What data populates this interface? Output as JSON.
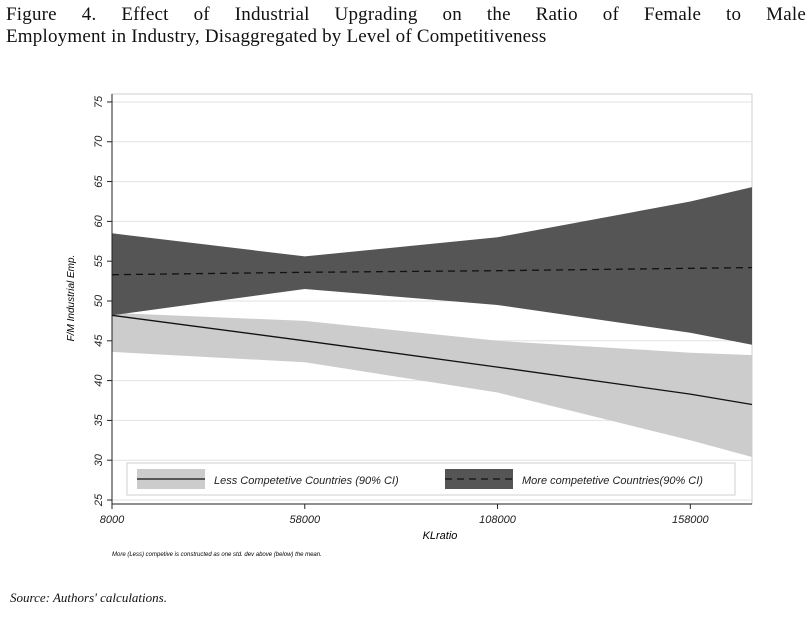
{
  "figure": {
    "title_line1": "Figure 4. Effect of Industrial Upgrading on the Ratio of Female to Male",
    "title_line2": "Employment in Industry, Disaggregated by Level of Competitiveness",
    "source": "Source: Authors' calculations."
  },
  "chart_data": {
    "type": "area",
    "xlabel": "KLratio",
    "ylabel": "F/M Industrial Emp.",
    "note": "More (Less) competive is constructed as one std. dev above (below) the mean.",
    "xlim": [
      8000,
      174000
    ],
    "ylim": [
      24.5,
      76
    ],
    "xticks": [
      8000,
      58000,
      108000,
      158000
    ],
    "yticks": [
      25,
      30,
      35,
      40,
      45,
      50,
      55,
      60,
      65,
      70,
      75
    ],
    "grid": "horizontal",
    "legend_position": "bottom",
    "series": [
      {
        "name": "Less Competetive Countries (90% CI)",
        "color": "#cccccc",
        "line_style": "solid",
        "x": [
          8000,
          58000,
          108000,
          158000,
          174000
        ],
        "fit": [
          48.2,
          45.0,
          41.7,
          38.3,
          37.0
        ],
        "lower": [
          43.6,
          42.3,
          38.5,
          32.5,
          30.4
        ],
        "upper": [
          48.5,
          47.5,
          45.0,
          43.5,
          43.2
        ]
      },
      {
        "name": "More competetive Countries(90% CI)",
        "color": "#555555",
        "line_style": "dashed",
        "x": [
          8000,
          58000,
          108000,
          158000,
          174000
        ],
        "fit": [
          53.3,
          53.6,
          53.8,
          54.1,
          54.2
        ],
        "lower": [
          48.2,
          51.5,
          49.5,
          46.0,
          44.5
        ],
        "upper": [
          58.5,
          55.6,
          58.0,
          62.5,
          64.3
        ]
      }
    ]
  }
}
